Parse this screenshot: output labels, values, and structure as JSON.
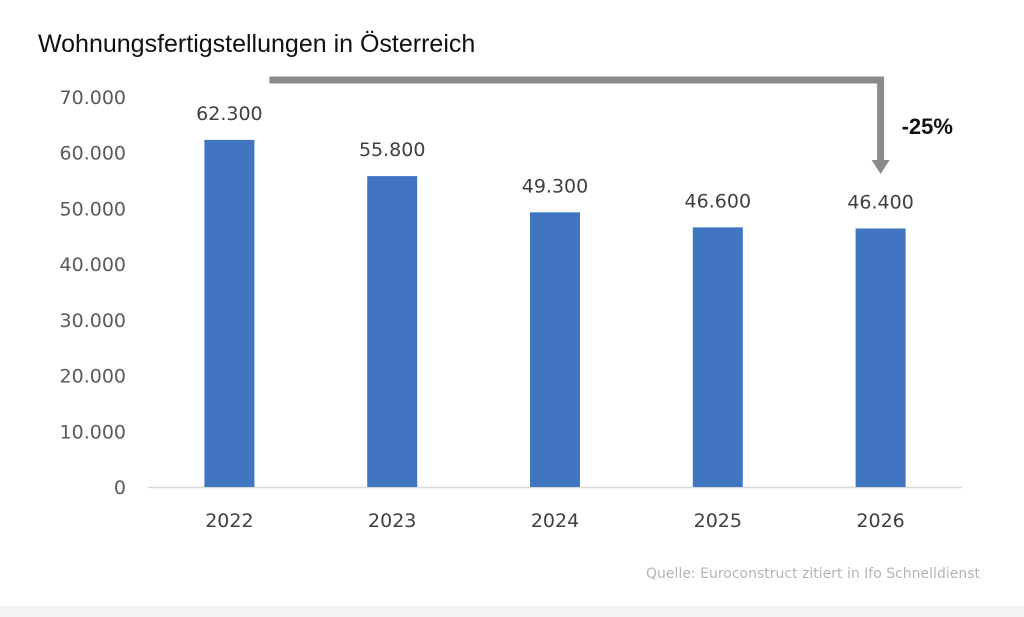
{
  "chart_data": {
    "type": "bar",
    "title": "Wohnungsfertigstellungen in Österreich",
    "categories": [
      "2022",
      "2023",
      "2024",
      "2025",
      "2026"
    ],
    "values": [
      62300,
      55800,
      49300,
      46600,
      46400
    ],
    "value_labels": [
      "62.300",
      "55.800",
      "49.300",
      "46.600",
      "46.400"
    ],
    "ylim": [
      0,
      70000
    ],
    "yticks": [
      0,
      10000,
      20000,
      30000,
      40000,
      50000,
      60000,
      70000
    ],
    "ytick_labels": [
      "0",
      "10.000",
      "20.000",
      "30.000",
      "40.000",
      "50.000",
      "60.000",
      "70.000"
    ],
    "xlabel": "",
    "ylabel": "",
    "grid": false,
    "legend": "none",
    "bar_color": "#4075c2",
    "annotation": {
      "label": "-25%",
      "from_category": "2022",
      "to_category": "2026",
      "color": "#8a8a8a"
    },
    "source": "Quelle: Euroconstruct zitiert in Ifo Schnelldienst"
  }
}
